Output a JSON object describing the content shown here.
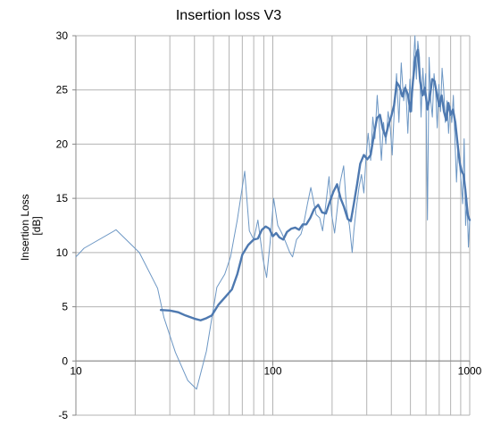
{
  "chart_data": {
    "type": "line",
    "title": "Insertion loss V3",
    "xlabel": "",
    "ylabel_lines": [
      "Insertion Loss",
      "[dB]"
    ],
    "x_scale": "log",
    "xlim": [
      10,
      1000
    ],
    "ylim": [
      -5,
      30
    ],
    "y_ticks": [
      -5,
      0,
      5,
      10,
      15,
      20,
      25,
      30
    ],
    "x_ticks": [
      10,
      100,
      1000
    ],
    "x_tick_labels": [
      "10",
      "100",
      "1000"
    ],
    "grid": true,
    "legend": "none",
    "colors": {
      "raw": "#6d97c4",
      "smooth": "#4e79b0",
      "grid": "#b3b3b3",
      "axis": "#888888"
    },
    "series": [
      {
        "style": "thin",
        "points": [
          [
            10,
            9.6
          ],
          [
            11,
            10.4
          ],
          [
            16,
            12.1
          ],
          [
            21,
            10.0
          ],
          [
            26,
            6.7
          ],
          [
            28,
            4.0
          ],
          [
            32,
            0.8
          ],
          [
            37,
            -1.8
          ],
          [
            41,
            -2.6
          ],
          [
            46,
            0.9
          ],
          [
            52,
            6.8
          ],
          [
            57,
            8.0
          ],
          [
            61,
            9.6
          ],
          [
            66,
            13.0
          ],
          [
            72,
            17.5
          ],
          [
            76,
            12.0
          ],
          [
            80,
            11.2
          ],
          [
            84,
            13.0
          ],
          [
            89,
            9.5
          ],
          [
            93,
            7.7
          ],
          [
            97,
            11.0
          ],
          [
            101,
            15.0
          ],
          [
            106,
            12.5
          ],
          [
            111,
            11.8
          ],
          [
            116,
            11.0
          ],
          [
            122,
            10.0
          ],
          [
            126,
            9.6
          ],
          [
            132,
            11.2
          ],
          [
            139,
            11.7
          ],
          [
            143,
            12.5
          ],
          [
            150,
            14.5
          ],
          [
            156,
            16.0
          ],
          [
            160,
            15.0
          ],
          [
            166,
            13.5
          ],
          [
            173,
            13.2
          ],
          [
            179,
            12.0
          ],
          [
            186,
            14.5
          ],
          [
            193,
            17.0
          ],
          [
            199,
            13.5
          ],
          [
            206,
            11.8
          ],
          [
            213,
            14.2
          ],
          [
            220,
            16.5
          ],
          [
            229,
            18.0
          ],
          [
            237,
            14.0
          ],
          [
            245,
            12.5
          ],
          [
            253,
            10.0
          ],
          [
            258,
            12.0
          ],
          [
            265,
            14.0
          ],
          [
            274,
            16.0
          ],
          [
            282,
            17.2
          ],
          [
            290,
            15.5
          ],
          [
            298,
            19.0
          ],
          [
            305,
            21.0
          ],
          [
            314,
            18.5
          ],
          [
            322,
            22.5
          ],
          [
            330,
            20.5
          ],
          [
            339,
            24.5
          ],
          [
            348,
            21.5
          ],
          [
            356,
            18.5
          ],
          [
            365,
            22.0
          ],
          [
            375,
            20.0
          ],
          [
            385,
            23.0
          ],
          [
            395,
            21.5
          ],
          [
            404,
            19.0
          ],
          [
            415,
            23.5
          ],
          [
            425,
            26.5
          ],
          [
            437,
            22.0
          ],
          [
            449,
            27.5
          ],
          [
            462,
            24.0
          ],
          [
            473,
            25.5
          ],
          [
            485,
            21.0
          ],
          [
            497,
            26.0
          ],
          [
            508,
            23.0
          ],
          [
            518,
            27.5
          ],
          [
            527,
            30.0
          ],
          [
            536,
            26.0
          ],
          [
            545,
            29.5
          ],
          [
            556,
            28.0
          ],
          [
            566,
            22.5
          ],
          [
            578,
            27.0
          ],
          [
            588,
            24.5
          ],
          [
            598,
            26.5
          ],
          [
            610,
            13.0
          ],
          [
            622,
            28.0
          ],
          [
            634,
            24.0
          ],
          [
            646,
            22.5
          ],
          [
            659,
            26.5
          ],
          [
            671,
            25.0
          ],
          [
            684,
            21.5
          ],
          [
            697,
            25.5
          ],
          [
            711,
            23.0
          ],
          [
            724,
            27.0
          ],
          [
            738,
            25.0
          ],
          [
            752,
            22.0
          ],
          [
            767,
            24.0
          ],
          [
            781,
            21.0
          ],
          [
            796,
            23.5
          ],
          [
            811,
            22.0
          ],
          [
            826,
            24.5
          ],
          [
            841,
            20.5
          ],
          [
            857,
            16.5
          ],
          [
            873,
            20.0
          ],
          [
            889,
            18.0
          ],
          [
            905,
            16.5
          ],
          [
            921,
            14.5
          ],
          [
            937,
            20.5
          ],
          [
            953,
            12.5
          ],
          [
            969,
            15.0
          ],
          [
            985,
            10.5
          ],
          [
            1000,
            13.0
          ]
        ]
      },
      {
        "style": "thick",
        "points": [
          [
            27,
            4.7
          ],
          [
            30,
            4.65
          ],
          [
            33,
            4.5
          ],
          [
            36,
            4.2
          ],
          [
            40,
            3.9
          ],
          [
            43,
            3.75
          ],
          [
            46,
            3.95
          ],
          [
            49,
            4.2
          ],
          [
            53,
            5.2
          ],
          [
            58,
            6.0
          ],
          [
            62,
            6.6
          ],
          [
            66,
            8.0
          ],
          [
            70,
            9.8
          ],
          [
            75,
            10.7
          ],
          [
            80,
            11.2
          ],
          [
            84,
            11.3
          ],
          [
            88,
            12.1
          ],
          [
            92,
            12.4
          ],
          [
            96,
            12.2
          ],
          [
            100,
            11.5
          ],
          [
            104,
            11.8
          ],
          [
            108,
            11.4
          ],
          [
            113,
            11.2
          ],
          [
            118,
            11.9
          ],
          [
            124,
            12.2
          ],
          [
            130,
            12.3
          ],
          [
            136,
            12.1
          ],
          [
            142,
            12.6
          ],
          [
            148,
            12.6
          ],
          [
            155,
            13.2
          ],
          [
            162,
            14.0
          ],
          [
            170,
            14.4
          ],
          [
            178,
            13.7
          ],
          [
            186,
            13.6
          ],
          [
            194,
            14.6
          ],
          [
            203,
            15.6
          ],
          [
            212,
            16.3
          ],
          [
            221,
            15.0
          ],
          [
            230,
            14.2
          ],
          [
            240,
            13.1
          ],
          [
            249,
            12.9
          ],
          [
            258,
            14.5
          ],
          [
            268,
            16.3
          ],
          [
            278,
            18.2
          ],
          [
            290,
            19.0
          ],
          [
            302,
            18.6
          ],
          [
            314,
            19.0
          ],
          [
            326,
            20.8
          ],
          [
            338,
            22.4
          ],
          [
            350,
            22.7
          ],
          [
            362,
            21.4
          ],
          [
            374,
            20.7
          ],
          [
            387,
            21.8
          ],
          [
            400,
            22.6
          ],
          [
            413,
            23.6
          ],
          [
            426,
            25.7
          ],
          [
            440,
            25.3
          ],
          [
            455,
            24.4
          ],
          [
            470,
            25.2
          ],
          [
            485,
            24.6
          ],
          [
            500,
            23.0
          ],
          [
            515,
            25.8
          ],
          [
            530,
            28.0
          ],
          [
            545,
            28.7
          ],
          [
            560,
            25.8
          ],
          [
            576,
            24.5
          ],
          [
            592,
            25.2
          ],
          [
            610,
            23.2
          ],
          [
            628,
            24.4
          ],
          [
            645,
            26.0
          ],
          [
            663,
            25.8
          ],
          [
            681,
            24.6
          ],
          [
            700,
            23.5
          ],
          [
            720,
            24.5
          ],
          [
            740,
            23.0
          ],
          [
            760,
            22.2
          ],
          [
            780,
            23.8
          ],
          [
            800,
            22.7
          ],
          [
            822,
            23.2
          ],
          [
            845,
            22.0
          ],
          [
            868,
            20.0
          ],
          [
            890,
            18.3
          ],
          [
            910,
            17.5
          ],
          [
            930,
            17.2
          ],
          [
            950,
            15.8
          ],
          [
            965,
            14.5
          ],
          [
            980,
            13.4
          ],
          [
            1000,
            13.0
          ]
        ]
      }
    ]
  }
}
